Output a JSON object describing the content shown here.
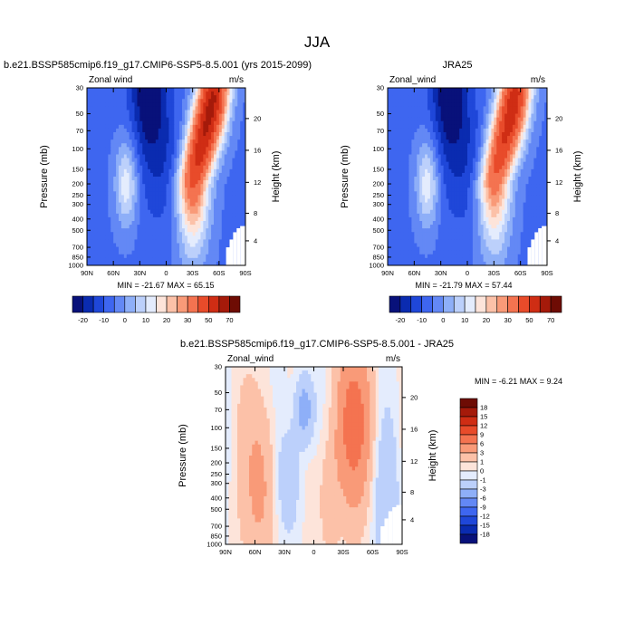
{
  "figure": {
    "title": "JJA"
  },
  "chart_data": [
    {
      "type": "heatmap",
      "panel": "model",
      "title": "b.e21.BSSP585cmip6.f19_g17.CMIP6-SSP5-8.5.001 (yrs 2015-2099)",
      "left_label": "Zonal wind",
      "right_label": "m/s",
      "ylabel": "Pressure (mb)",
      "ylabel_right": "Height (km)",
      "x_ticks": [
        "90N",
        "60N",
        "30N",
        "0",
        "30S",
        "60S",
        "90S"
      ],
      "y_ticks": [
        "30",
        "50",
        "70",
        "100",
        "150",
        "200",
        "250",
        "300",
        "400",
        "500",
        "700",
        "850",
        "1000"
      ],
      "height_ticks": [
        "20",
        "16",
        "12",
        "8",
        "4"
      ],
      "xlim": [
        90,
        -90
      ],
      "ylim": [
        1000,
        30
      ],
      "stats": "MIN = -21.67   MAX =  65.15",
      "min": -21.67,
      "max": 65.15,
      "colorbar": {
        "labels": [
          "-20",
          "-10",
          "0",
          "10",
          "20",
          "30",
          "50",
          "70"
        ],
        "colors": [
          "#08117a",
          "#0a2bb0",
          "#1f47d9",
          "#3e66f0",
          "#6388f5",
          "#8eaff8",
          "#bcd0fb",
          "#e4ecfd",
          "#fde4da",
          "#fcc1a8",
          "#f99a78",
          "#f47350",
          "#e84b2a",
          "#cf2d14",
          "#a51a0a",
          "#6e0c04"
        ]
      }
    },
    {
      "type": "heatmap",
      "panel": "obs",
      "title": "JRA25",
      "left_label": "Zonal_wind",
      "right_label": "m/s",
      "ylabel": "Pressure (mb)",
      "ylabel_right": "Height (km)",
      "x_ticks": [
        "90N",
        "60N",
        "30N",
        "0",
        "30S",
        "60S",
        "90S"
      ],
      "y_ticks": [
        "30",
        "50",
        "70",
        "100",
        "150",
        "200",
        "250",
        "300",
        "400",
        "500",
        "700",
        "850",
        "1000"
      ],
      "height_ticks": [
        "20",
        "16",
        "12",
        "8",
        "4"
      ],
      "xlim": [
        90,
        -90
      ],
      "ylim": [
        1000,
        30
      ],
      "stats": "MIN = -21.79   MAX =  57.44",
      "min": -21.79,
      "max": 57.44,
      "colorbar": {
        "labels": [
          "-20",
          "-10",
          "0",
          "10",
          "20",
          "30",
          "50",
          "70"
        ],
        "colors": [
          "#08117a",
          "#0a2bb0",
          "#1f47d9",
          "#3e66f0",
          "#6388f5",
          "#8eaff8",
          "#bcd0fb",
          "#e4ecfd",
          "#fde4da",
          "#fcc1a8",
          "#f99a78",
          "#f47350",
          "#e84b2a",
          "#cf2d14",
          "#a51a0a",
          "#6e0c04"
        ]
      }
    },
    {
      "type": "heatmap",
      "panel": "difference",
      "title": "b.e21.BSSP585cmip6.f19_g17.CMIP6-SSP5-8.5.001 - JRA25",
      "left_label": "Zonal_wind",
      "right_label": "m/s",
      "ylabel": "Pressure (mb)",
      "ylabel_right": "Height (km)",
      "x_ticks": [
        "90N",
        "60N",
        "30N",
        "0",
        "30S",
        "60S",
        "90S"
      ],
      "y_ticks": [
        "30",
        "50",
        "70",
        "100",
        "150",
        "200",
        "250",
        "300",
        "400",
        "500",
        "700",
        "850",
        "1000"
      ],
      "height_ticks": [
        "20",
        "16",
        "12",
        "8",
        "4"
      ],
      "xlim": [
        90,
        -90
      ],
      "ylim": [
        1000,
        30
      ],
      "stats": "MIN =  -6.21   MAX =   9.24",
      "min": -6.21,
      "max": 9.24,
      "colorbar": {
        "labels": [
          "18",
          "15",
          "12",
          "9",
          "6",
          "3",
          "1",
          "0",
          "-1",
          "-3",
          "-6",
          "-9",
          "-12",
          "-15",
          "-18"
        ],
        "colors": [
          "#6e0c04",
          "#a51a0a",
          "#cf2d14",
          "#e84b2a",
          "#f47350",
          "#f99a78",
          "#fcc1a8",
          "#fde4da",
          "#e4ecfd",
          "#bcd0fb",
          "#8eaff8",
          "#6388f5",
          "#3e66f0",
          "#1f47d9",
          "#0a2bb0",
          "#08117a"
        ]
      }
    }
  ]
}
